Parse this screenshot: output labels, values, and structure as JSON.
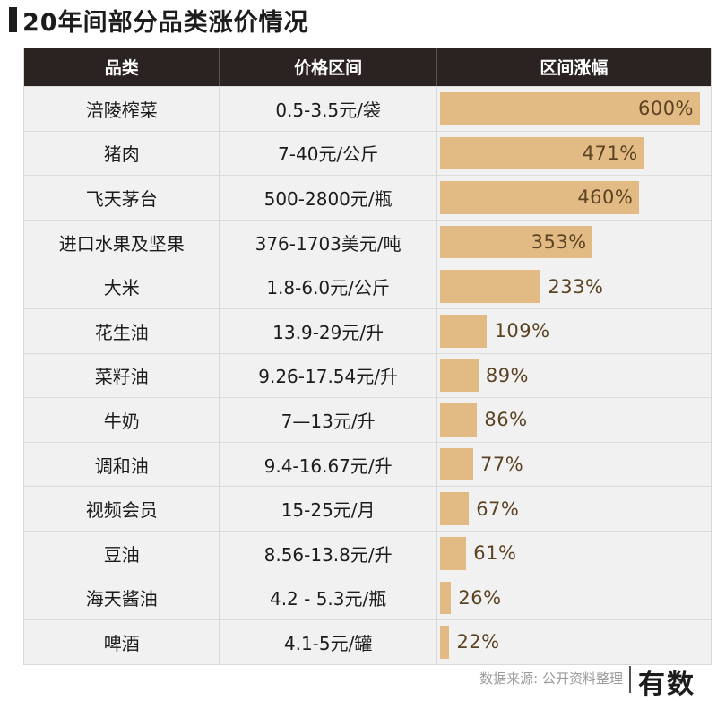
{
  "title": "20年间部分品类涨价情况",
  "headers": {
    "category": "品类",
    "price_range": "价格区间",
    "increase": "区间涨幅"
  },
  "source": "数据来源: 公开资料整理",
  "brand": "有数",
  "colors": {
    "bar": "#e2ba84",
    "header_bg": "#2a2321",
    "row_bg": "#f1f1f1"
  },
  "chart_data": {
    "type": "table",
    "columns": [
      "品类",
      "价格区间",
      "区间涨幅"
    ],
    "rows": [
      {
        "category": "涪陵榨菜",
        "price": "0.5-3.5元/袋",
        "label": "600%",
        "value": 600
      },
      {
        "category": "猪肉",
        "price": "7-40元/公斤",
        "label": "471%",
        "value": 471
      },
      {
        "category": "飞天茅台",
        "price": "500-2800元/瓶",
        "label": "460%",
        "value": 460
      },
      {
        "category": "进口水果及坚果",
        "price": "376-1703美元/吨",
        "label": "353%",
        "value": 353
      },
      {
        "category": "大米",
        "price": "1.8-6.0元/公斤",
        "label": "233%",
        "value": 233
      },
      {
        "category": "花生油",
        "price": "13.9-29元/升",
        "label": "109%",
        "value": 109
      },
      {
        "category": "菜籽油",
        "price": "9.26-17.54元/升",
        "label": "89%",
        "value": 89
      },
      {
        "category": "牛奶",
        "price": "7—13元/升",
        "label": "86%",
        "value": 86
      },
      {
        "category": "调和油",
        "price": "9.4-16.67元/升",
        "label": "77%",
        "value": 77
      },
      {
        "category": "视频会员",
        "price": "15-25元/月",
        "label": "67%",
        "value": 67
      },
      {
        "category": "豆油",
        "price": "8.56-13.8元/升",
        "label": "61%",
        "value": 61
      },
      {
        "category": "海天酱油",
        "price": "4.2 - 5.3元/瓶",
        "label": "26%",
        "value": 26
      },
      {
        "category": "啤酒",
        "price": "4.1-5元/罐",
        "label": "22%",
        "value": 22
      }
    ],
    "xlim": [
      0,
      600
    ]
  }
}
